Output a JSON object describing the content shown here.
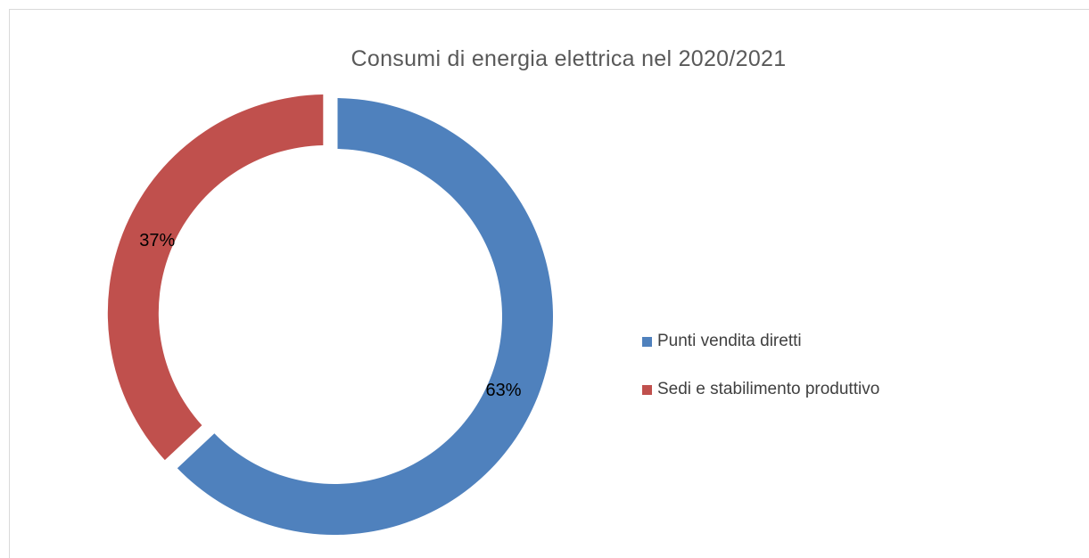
{
  "chart_data": {
    "type": "pie",
    "title": "Consumi di energia elettrica nel 2020/2021",
    "slices": [
      {
        "name": "Punti vendita diretti",
        "value": 63,
        "label": "63%",
        "color": "#4f81bd"
      },
      {
        "name": "Sedi e stabilimento produttivo",
        "value": 37,
        "label": "37%",
        "color": "#c0504d"
      }
    ],
    "legend": {
      "placement": "right",
      "entries": [
        "Punti vendita diretti",
        "Sedi e stabilimento produttivo"
      ]
    }
  }
}
